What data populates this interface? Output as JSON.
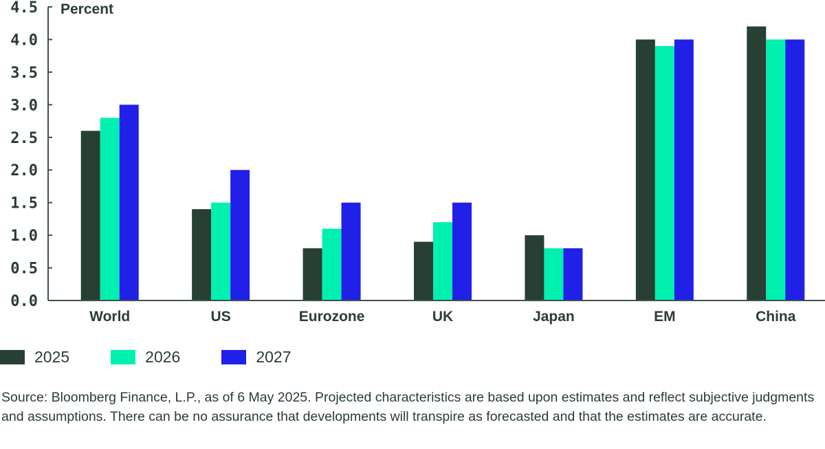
{
  "chart_data": {
    "type": "bar",
    "title": "",
    "ylabel": "Percent",
    "xlabel": "",
    "ylim": [
      0,
      4.5
    ],
    "yticks": [
      "0.0",
      "0.5",
      "1.0",
      "1.5",
      "2.0",
      "2.5",
      "3.0",
      "3.5",
      "4.0",
      "4.5"
    ],
    "categories": [
      "World",
      "US",
      "Eurozone",
      "UK",
      "Japan",
      "EM",
      "China"
    ],
    "series": [
      {
        "name": "2025",
        "color": "#283f33",
        "values": [
          2.6,
          1.4,
          0.8,
          0.9,
          1.0,
          4.0,
          4.2
        ]
      },
      {
        "name": "2026",
        "color": "#00f0b0",
        "values": [
          2.8,
          1.5,
          1.1,
          1.2,
          0.8,
          3.9,
          4.0
        ]
      },
      {
        "name": "2027",
        "color": "#2020e8",
        "values": [
          3.0,
          2.0,
          1.5,
          1.5,
          0.8,
          4.0,
          4.0
        ]
      }
    ],
    "grid": false,
    "legend": "bottom-left"
  },
  "footnote": "Source: Bloomberg Finance, L.P., as of 6 May 2025. Projected characteristics are based upon estimates and reflect subjective judgments and assumptions. There can be no assurance that developments will transpire as forecasted and that the estimates are accurate."
}
